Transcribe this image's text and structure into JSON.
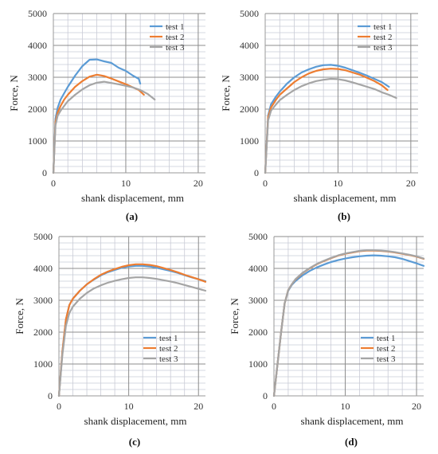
{
  "colors": {
    "test1": "#5B9BD5",
    "test2": "#ED7D31",
    "test3": "#A5A5A5",
    "grid_major": "#8c8c8c",
    "grid_minor": "#c9cbd6",
    "axis": "#9a9a9a"
  },
  "chart_data": [
    {
      "type": "line",
      "panel_label": "(a)",
      "xlabel": "shank displacement, mm",
      "ylabel": "Force, N",
      "xlim": [
        0,
        21
      ],
      "ylim": [
        0,
        5000
      ],
      "xticks": [
        0,
        10,
        20
      ],
      "yticks": [
        0,
        1000,
        2000,
        3000,
        4000,
        5000
      ],
      "grid": true,
      "legend": "top-right",
      "series": [
        {
          "name": "test 1",
          "color_key": "test1",
          "x": [
            0,
            0.3,
            0.6,
            1,
            1.5,
            2,
            3,
            4,
            5,
            6,
            7,
            8,
            9,
            10,
            11,
            11.8,
            12
          ],
          "y": [
            0,
            1700,
            2050,
            2300,
            2500,
            2700,
            3050,
            3350,
            3550,
            3560,
            3500,
            3450,
            3300,
            3200,
            3050,
            2950,
            2800
          ]
        },
        {
          "name": "test 2",
          "color_key": "test2",
          "x": [
            0,
            0.3,
            0.6,
            1,
            1.5,
            2,
            3,
            4,
            5,
            6,
            7,
            8,
            9,
            10,
            11,
            11.8,
            12.5
          ],
          "y": [
            0,
            1600,
            1900,
            2100,
            2300,
            2450,
            2700,
            2880,
            3020,
            3080,
            3040,
            2960,
            2870,
            2780,
            2680,
            2600,
            2450
          ]
        },
        {
          "name": "test 3",
          "color_key": "test3",
          "x": [
            0,
            0.3,
            0.6,
            1,
            1.5,
            2,
            3,
            4,
            5,
            6,
            7,
            8,
            9,
            10,
            11,
            12,
            13,
            14
          ],
          "y": [
            0,
            1500,
            1800,
            1950,
            2100,
            2250,
            2450,
            2620,
            2750,
            2830,
            2860,
            2820,
            2780,
            2730,
            2680,
            2600,
            2480,
            2300
          ]
        }
      ]
    },
    {
      "type": "line",
      "panel_label": "(b)",
      "xlabel": "shank displacement, mm",
      "ylabel": "Force, N",
      "xlim": [
        0,
        21
      ],
      "ylim": [
        0,
        5000
      ],
      "xticks": [
        0,
        10,
        20
      ],
      "yticks": [
        0,
        1000,
        2000,
        3000,
        4000,
        5000
      ],
      "grid": true,
      "legend": "top-right",
      "series": [
        {
          "name": "test 1",
          "color_key": "test1",
          "x": [
            0,
            0.4,
            0.8,
            1.5,
            2,
            3,
            4,
            5,
            6,
            7,
            8,
            9,
            10,
            11,
            12,
            13,
            14,
            15,
            16,
            17
          ],
          "y": [
            0,
            1800,
            2150,
            2400,
            2550,
            2800,
            3000,
            3150,
            3250,
            3330,
            3380,
            3390,
            3360,
            3300,
            3220,
            3140,
            3050,
            2950,
            2850,
            2700
          ]
        },
        {
          "name": "test 2",
          "color_key": "test2",
          "x": [
            0,
            0.4,
            0.8,
            1.5,
            2,
            3,
            4,
            5,
            6,
            7,
            8,
            9,
            10,
            11,
            12,
            13,
            14,
            15,
            16,
            16.8
          ],
          "y": [
            0,
            1750,
            2050,
            2300,
            2450,
            2650,
            2850,
            3000,
            3120,
            3200,
            3250,
            3270,
            3260,
            3220,
            3150,
            3080,
            2980,
            2880,
            2750,
            2600
          ]
        },
        {
          "name": "test 3",
          "color_key": "test3",
          "x": [
            0,
            0.4,
            0.8,
            1.5,
            2,
            3,
            4,
            5,
            6,
            7,
            8,
            9,
            10,
            11,
            12,
            13,
            14,
            15,
            16,
            17,
            18
          ],
          "y": [
            0,
            1650,
            1950,
            2150,
            2280,
            2450,
            2600,
            2720,
            2810,
            2880,
            2920,
            2950,
            2940,
            2900,
            2840,
            2770,
            2700,
            2630,
            2530,
            2450,
            2350
          ]
        }
      ]
    },
    {
      "type": "line",
      "panel_label": "(c)",
      "xlabel": "shank displacement, mm",
      "ylabel": "Force, N",
      "xlim": [
        0,
        21
      ],
      "ylim": [
        0,
        5000
      ],
      "xticks": [
        0,
        10,
        20
      ],
      "yticks": [
        0,
        1000,
        2000,
        3000,
        4000,
        5000
      ],
      "grid": true,
      "legend": "bottom-right",
      "series": [
        {
          "name": "test 1",
          "color_key": "test1",
          "x": [
            0,
            0.5,
            1,
            1.5,
            2,
            3,
            4,
            5,
            6,
            7,
            8,
            9,
            10,
            11,
            12,
            13,
            14,
            15,
            16,
            17,
            18,
            19,
            20,
            21
          ],
          "y": [
            0,
            1400,
            2400,
            2850,
            3050,
            3300,
            3500,
            3650,
            3780,
            3880,
            3950,
            4020,
            4060,
            4080,
            4080,
            4060,
            4020,
            3970,
            3920,
            3860,
            3790,
            3720,
            3660,
            3600
          ]
        },
        {
          "name": "test 2",
          "color_key": "test2",
          "x": [
            0,
            0.5,
            1,
            1.5,
            2,
            3,
            4,
            5,
            6,
            7,
            8,
            9,
            10,
            11,
            12,
            13,
            14,
            15,
            16,
            17,
            18,
            19,
            20,
            21
          ],
          "y": [
            0,
            1400,
            2400,
            2850,
            3050,
            3300,
            3500,
            3660,
            3800,
            3900,
            3980,
            4050,
            4100,
            4130,
            4130,
            4110,
            4070,
            4010,
            3950,
            3880,
            3800,
            3730,
            3660,
            3580
          ]
        },
        {
          "name": "test 3",
          "color_key": "test3",
          "x": [
            0,
            0.5,
            1,
            1.5,
            2,
            3,
            4,
            5,
            6,
            7,
            8,
            9,
            10,
            11,
            12,
            13,
            14,
            15,
            16,
            17,
            18,
            19,
            20,
            21
          ],
          "y": [
            0,
            1300,
            2200,
            2600,
            2800,
            3050,
            3230,
            3370,
            3470,
            3550,
            3610,
            3660,
            3700,
            3720,
            3720,
            3700,
            3670,
            3630,
            3590,
            3540,
            3480,
            3420,
            3360,
            3300
          ]
        }
      ]
    },
    {
      "type": "line",
      "panel_label": "(d)",
      "xlabel": "shank displacement, mm",
      "ylabel": "Force, N",
      "xlim": [
        0,
        21
      ],
      "ylim": [
        0,
        5000
      ],
      "xticks": [
        0,
        10,
        20
      ],
      "yticks": [
        0,
        1000,
        2000,
        3000,
        4000,
        5000
      ],
      "grid": true,
      "legend": "bottom-right",
      "series": [
        {
          "name": "test 1",
          "color_key": "test1",
          "x": [
            0,
            0.5,
            1,
            1.5,
            2,
            2.5,
            3,
            4,
            5,
            6,
            7,
            8,
            9,
            10,
            11,
            12,
            13,
            14,
            15,
            16,
            17,
            18,
            19,
            20,
            21
          ],
          "y": [
            0,
            1000,
            2000,
            2900,
            3300,
            3480,
            3600,
            3780,
            3920,
            4030,
            4120,
            4200,
            4260,
            4310,
            4350,
            4380,
            4400,
            4410,
            4400,
            4380,
            4350,
            4300,
            4230,
            4160,
            4080
          ]
        },
        {
          "name": "test 2",
          "color_key": "test2",
          "x": [
            0,
            0.5,
            1,
            1.5,
            2,
            2.5,
            3,
            4,
            5,
            6,
            7,
            8,
            9,
            10,
            11,
            12,
            13,
            14,
            15,
            16,
            17,
            18,
            19,
            20,
            21
          ],
          "y": [
            0,
            1000,
            2000,
            2900,
            3320,
            3500,
            3650,
            3850,
            4000,
            4130,
            4230,
            4320,
            4400,
            4460,
            4500,
            4540,
            4560,
            4560,
            4550,
            4530,
            4500,
            4460,
            4420,
            4370,
            4300
          ]
        },
        {
          "name": "test 3",
          "color_key": "test3",
          "x": [
            0,
            0.5,
            1,
            1.5,
            2,
            2.5,
            3,
            4,
            5,
            6,
            7,
            8,
            9,
            10,
            11,
            12,
            13,
            14,
            15,
            16,
            17,
            18,
            19,
            20,
            21
          ],
          "y": [
            0,
            1000,
            2000,
            2900,
            3320,
            3500,
            3660,
            3860,
            4010,
            4140,
            4240,
            4330,
            4410,
            4470,
            4510,
            4550,
            4570,
            4570,
            4560,
            4540,
            4510,
            4470,
            4430,
            4380,
            4310
          ]
        }
      ]
    }
  ]
}
